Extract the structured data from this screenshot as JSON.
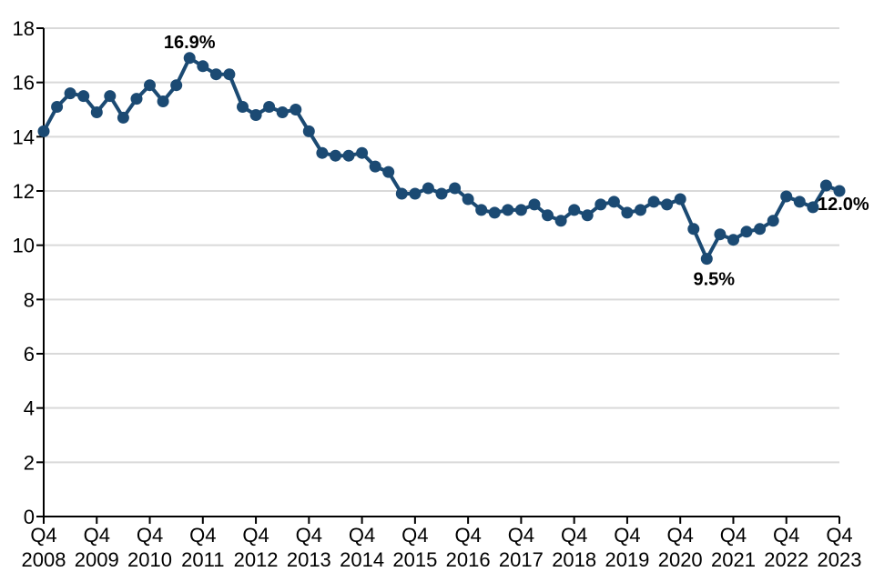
{
  "chart_data": {
    "type": "line",
    "title": "",
    "xlabel": "",
    "ylabel": "",
    "ylim": [
      0,
      18
    ],
    "ytick_step": 2,
    "grid": true,
    "legend_position": "none",
    "x_tick_quarter_label": "Q4",
    "x_tick_years": [
      "2008",
      "2009",
      "2010",
      "2011",
      "2012",
      "2013",
      "2014",
      "2015",
      "2016",
      "2017",
      "2018",
      "2019",
      "2020",
      "2021",
      "2022",
      "2023"
    ],
    "categories": [
      "2008 Q4",
      "2009 Q1",
      "2009 Q2",
      "2009 Q3",
      "2009 Q4",
      "2010 Q1",
      "2010 Q2",
      "2010 Q3",
      "2010 Q4",
      "2011 Q1",
      "2011 Q2",
      "2011 Q3",
      "2011 Q4",
      "2012 Q1",
      "2012 Q2",
      "2012 Q3",
      "2012 Q4",
      "2013 Q1",
      "2013 Q2",
      "2013 Q3",
      "2013 Q4",
      "2014 Q1",
      "2014 Q2",
      "2014 Q3",
      "2014 Q4",
      "2015 Q1",
      "2015 Q2",
      "2015 Q3",
      "2015 Q4",
      "2016 Q1",
      "2016 Q2",
      "2016 Q3",
      "2016 Q4",
      "2017 Q1",
      "2017 Q2",
      "2017 Q3",
      "2017 Q4",
      "2018 Q1",
      "2018 Q2",
      "2018 Q3",
      "2018 Q4",
      "2019 Q1",
      "2019 Q2",
      "2019 Q3",
      "2019 Q4",
      "2020 Q1",
      "2020 Q2",
      "2020 Q3",
      "2020 Q4",
      "2021 Q1",
      "2021 Q2",
      "2021 Q3",
      "2021 Q4",
      "2022 Q1",
      "2022 Q2",
      "2022 Q3",
      "2022 Q4",
      "2023 Q1",
      "2023 Q2",
      "2023 Q3",
      "2023 Q4"
    ],
    "series": [
      {
        "name": "percentage",
        "values": [
          14.2,
          15.1,
          15.6,
          15.5,
          14.9,
          15.5,
          14.7,
          15.4,
          15.9,
          15.3,
          15.9,
          16.9,
          16.6,
          16.3,
          16.3,
          15.1,
          14.8,
          15.1,
          14.9,
          15.0,
          14.2,
          13.4,
          13.3,
          13.3,
          13.4,
          12.9,
          12.7,
          11.9,
          11.9,
          12.1,
          11.9,
          12.1,
          11.7,
          11.3,
          11.2,
          11.3,
          11.3,
          11.5,
          11.1,
          10.9,
          11.3,
          11.1,
          11.5,
          11.6,
          11.2,
          11.3,
          11.6,
          11.5,
          11.7,
          10.6,
          9.5,
          10.4,
          10.2,
          10.5,
          10.6,
          10.9,
          11.8,
          11.6,
          11.4,
          12.2,
          12.0
        ]
      }
    ],
    "annotations": [
      {
        "text": "16.9%",
        "point_index": 11,
        "placement": "above"
      },
      {
        "text": "9.5%",
        "point_index": 50,
        "placement": "below"
      },
      {
        "text": "12.0%",
        "point_index": 60,
        "placement": "below-right"
      }
    ],
    "colors": {
      "line": "#1b4a73",
      "marker": "#1b4a73",
      "annotation": "#1f4e7c",
      "grid": "#d9d9d9",
      "axis": "#000000",
      "tick_text": "#000000",
      "background": "#ffffff"
    }
  }
}
